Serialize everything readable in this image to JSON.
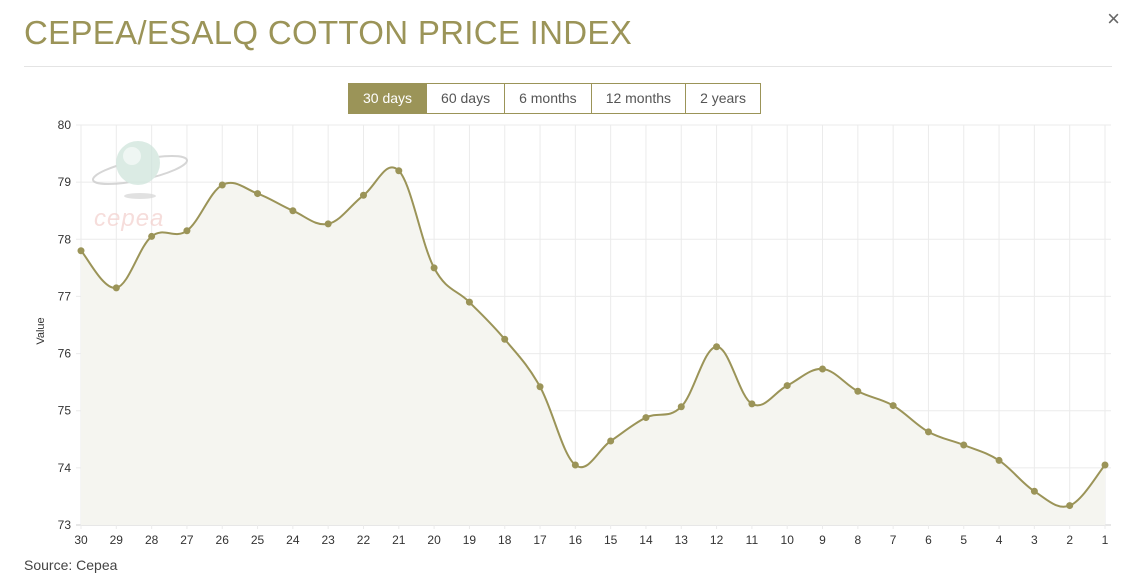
{
  "header": {
    "title": "CEPEA/ESALQ COTTON PRICE INDEX",
    "close_glyph": "×"
  },
  "ranges": [
    {
      "label": "30 days",
      "active": true
    },
    {
      "label": "60 days",
      "active": false
    },
    {
      "label": "6 months",
      "active": false
    },
    {
      "label": "12 months",
      "active": false
    },
    {
      "label": "2 years",
      "active": false
    }
  ],
  "logo": {
    "text": "cepea"
  },
  "footer": {
    "source": "Source: Cepea"
  },
  "colors": {
    "accent": "#9b9458",
    "line": "#9b9458",
    "fill": "#f5f5f0",
    "grid": "#ebebeb"
  },
  "chart_data": {
    "type": "area",
    "title": "",
    "xlabel": "",
    "ylabel": "Value",
    "ylim": [
      73,
      80
    ],
    "yticks": [
      73,
      74,
      75,
      76,
      77,
      78,
      79,
      80
    ],
    "categories": [
      "30",
      "29",
      "28",
      "27",
      "26",
      "25",
      "24",
      "23",
      "22",
      "21",
      "20",
      "19",
      "18",
      "17",
      "16",
      "15",
      "14",
      "13",
      "12",
      "11",
      "10",
      "9",
      "8",
      "7",
      "6",
      "5",
      "4",
      "3",
      "2",
      "1"
    ],
    "series": [
      {
        "name": "",
        "values": [
          77.8,
          77.15,
          78.05,
          78.15,
          78.95,
          78.8,
          78.5,
          78.27,
          78.77,
          79.2,
          77.5,
          76.9,
          76.25,
          75.42,
          74.05,
          74.47,
          74.88,
          75.07,
          76.12,
          75.12,
          75.44,
          75.73,
          75.34,
          75.09,
          74.63,
          74.4,
          74.13,
          73.59,
          73.34,
          74.05
        ]
      }
    ],
    "grid": true,
    "legend": "none"
  }
}
